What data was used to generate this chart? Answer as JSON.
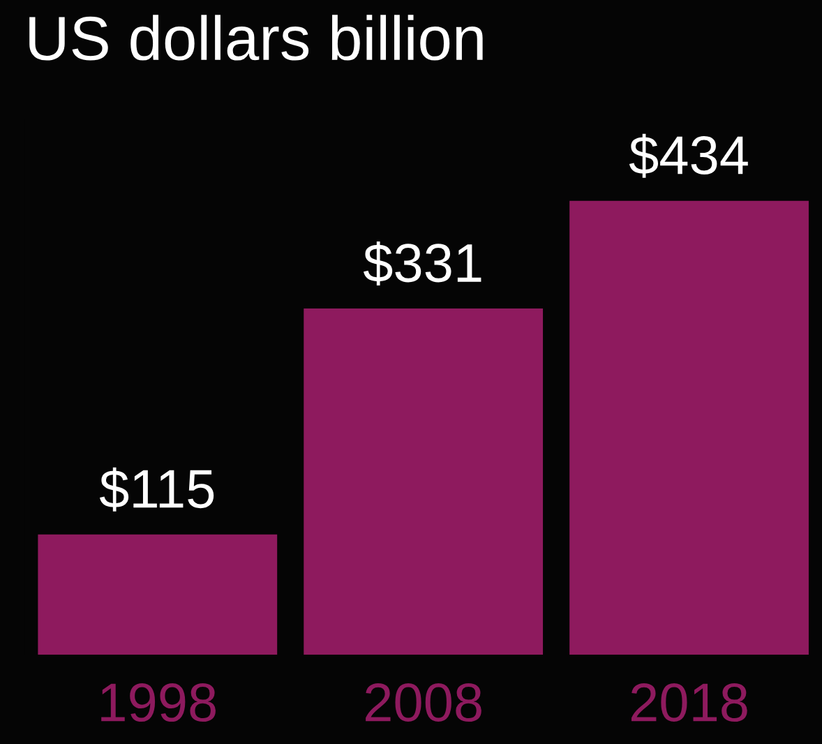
{
  "chart_data": {
    "type": "bar",
    "title": "US dollars billion",
    "categories": [
      "1998",
      "2008",
      "2018"
    ],
    "values": [
      115,
      331,
      434
    ],
    "value_labels": [
      "$115",
      "$331",
      "$434"
    ],
    "color": "#8e1a5e"
  }
}
